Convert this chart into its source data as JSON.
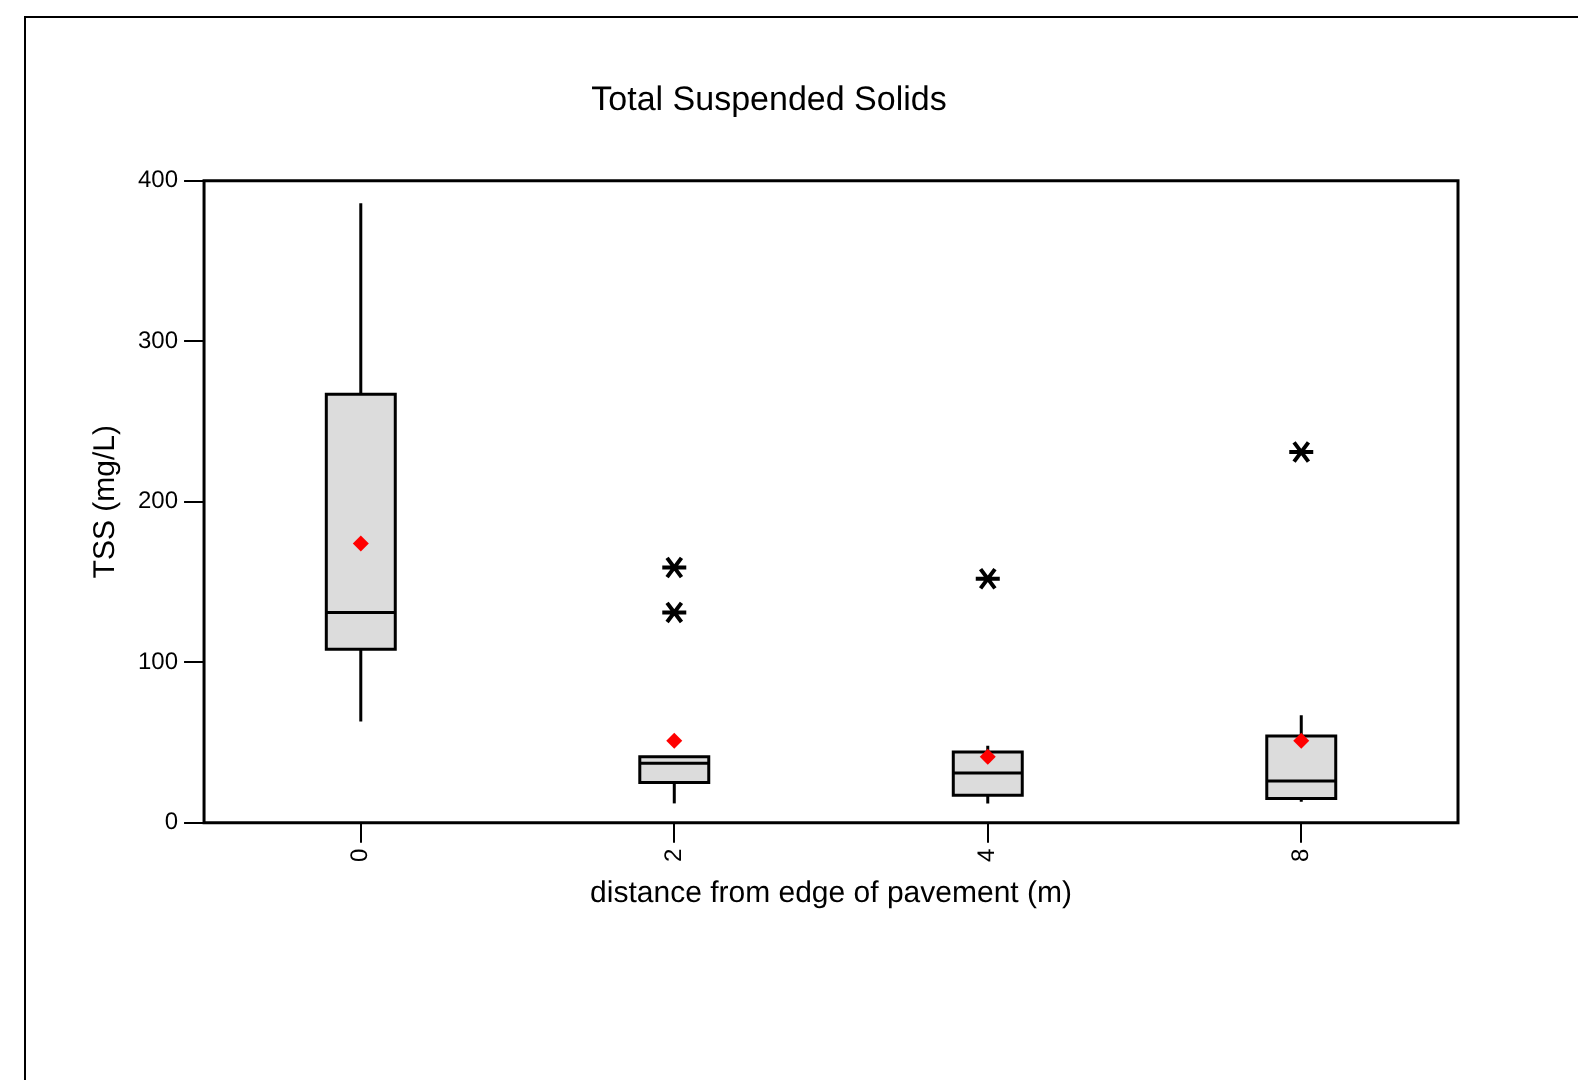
{
  "chart_data": {
    "type": "box",
    "title": "Total Suspended Solids",
    "xlabel": "distance from edge of pavement (m)",
    "ylabel": "TSS (mg/L)",
    "categories": [
      "0",
      "2",
      "4",
      "8"
    ],
    "color": "#dcdcdc",
    "boxes": [
      {
        "low": 63,
        "q1": 108,
        "median": 131,
        "q3": 267,
        "high": 386,
        "mean": 174
      },
      {
        "low": 12,
        "q1": 25,
        "median": 37,
        "q3": 41,
        "high": 41,
        "mean": 51,
        "outliers": [
          131,
          159
        ]
      },
      {
        "low": 12,
        "q1": 17,
        "median": 31,
        "q3": 44,
        "high": 48,
        "mean": 41,
        "outliers": [
          152
        ]
      },
      {
        "low": 13,
        "q1": 15,
        "median": 26,
        "q3": 54,
        "high": 67,
        "mean": 51,
        "outliers": [
          231
        ]
      }
    ],
    "ylim": [
      0,
      400
    ],
    "yticks": [
      0,
      100,
      200,
      300,
      400
    ],
    "grid": false,
    "legend": false
  }
}
